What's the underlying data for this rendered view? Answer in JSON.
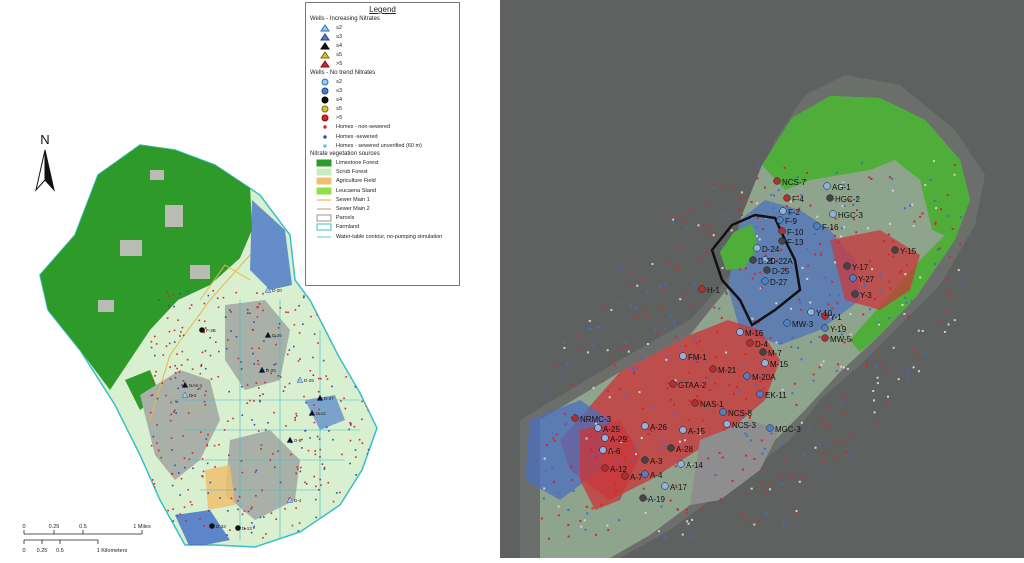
{
  "legend": {
    "title": "Legend",
    "sections": [
      {
        "name": "Wells - Increasing Nitrates",
        "items": [
          {
            "label": "≤2",
            "shape": "triangle",
            "fill": "#9cc9ee",
            "stroke": "#2d6fb2"
          },
          {
            "label": "≤3",
            "shape": "triangle",
            "fill": "#4f7fc7",
            "stroke": "#1d3f86"
          },
          {
            "label": "≤4",
            "shape": "triangle",
            "fill": "#111111",
            "stroke": "#000000"
          },
          {
            "label": "≤5",
            "shape": "triangle",
            "fill": "#d8c22e",
            "stroke": "#7a6a08"
          },
          {
            "label": ">5",
            "shape": "triangle",
            "fill": "#d8242a",
            "stroke": "#7c0f12"
          }
        ]
      },
      {
        "name": "Wells - No trend Nitrates",
        "items": [
          {
            "label": "≤2",
            "shape": "circle",
            "fill": "#9cc9ee",
            "stroke": "#2d6fb2"
          },
          {
            "label": "≤3",
            "shape": "circle",
            "fill": "#4f7fc7",
            "stroke": "#1d3f86"
          },
          {
            "label": "≤4",
            "shape": "circle",
            "fill": "#111111",
            "stroke": "#000000"
          },
          {
            "label": "≤5",
            "shape": "circle",
            "fill": "#d8c22e",
            "stroke": "#7a6a08"
          },
          {
            "label": ">5",
            "shape": "circle",
            "fill": "#d8242a",
            "stroke": "#7c0f12"
          }
        ]
      },
      {
        "name": "",
        "items": [
          {
            "label": "Homes - non-sewered",
            "shape": "dot",
            "fill": "#d8242a",
            "stroke": "#d8242a"
          },
          {
            "label": "Homes -sewered",
            "shape": "dot",
            "fill": "#2a4fb0",
            "stroke": "#2a4fb0"
          },
          {
            "label": "Homes - sewered unverified (60 m)",
            "shape": "dot",
            "fill": "#5ec0e8",
            "stroke": "#5ec0e8"
          }
        ]
      },
      {
        "name": "Nitrate vegetation sources",
        "items": [
          {
            "label": "Limestone Forest",
            "shape": "box",
            "fill": "#2e9a2a",
            "stroke": "#2e9a2a"
          },
          {
            "label": "Scrub Forest",
            "shape": "box",
            "fill": "#c8ecc0",
            "stroke": "#c8ecc0"
          },
          {
            "label": "Agriculture Field",
            "shape": "box",
            "fill": "#f0c070",
            "stroke": "#f0c070"
          },
          {
            "label": "Leucaena Stand",
            "shape": "box",
            "fill": "#8ee04a",
            "stroke": "#8ee04a"
          },
          {
            "label": "Sewer Main 1",
            "shape": "line",
            "fill": "none",
            "stroke": "#e8b84a"
          },
          {
            "label": "Sewer Main 2",
            "shape": "line",
            "fill": "none",
            "stroke": "#c8b27a"
          },
          {
            "label": "Parcels",
            "shape": "outline",
            "fill": "#ffffff",
            "stroke": "#9a9a9a"
          },
          {
            "label": "Farmland",
            "shape": "outline",
            "fill": "#ffffff",
            "stroke": "#38c0c8"
          },
          {
            "label": "Water-table contour, no-pumping simulation",
            "shape": "line",
            "fill": "none",
            "stroke": "#7ad4d8"
          }
        ]
      }
    ]
  },
  "north_label": "N",
  "scale": {
    "miles_ticks": [
      "0",
      "0.25",
      "0.5",
      "1 Miles"
    ],
    "km_ticks": [
      "0",
      "0.25",
      "0.5",
      "1 Kilometers"
    ]
  },
  "left_well_labels": [
    "F-3B",
    "D-26",
    "D-25",
    "D-29",
    "D-12",
    "D-27",
    "D-20",
    "D-8",
    "NAS-1",
    "D-4",
    "D-33",
    "D-13",
    "D-3"
  ],
  "right_well_labels": [
    "NCS-7",
    "AG-1",
    "F-4",
    "HGC-2",
    "F-2",
    "HGC-3",
    "F-9",
    "F-10",
    "F-16",
    "F-13",
    "D-24",
    "D-22A",
    "Y-15",
    "D-25",
    "D-27",
    "Y-17",
    "Y-27",
    "H-1",
    "Y-3",
    "Y-1",
    "Y-10",
    "MW-3",
    "Y-19",
    "M-16",
    "D-4",
    "MW-5",
    "M-7",
    "FM-1",
    "M-15",
    "M-21",
    "M-20A",
    "GTAA-2",
    "EK-11",
    "NAS-1",
    "NCS-8",
    "NRMC-3",
    "NCS-3",
    "MGC-3",
    "A-25",
    "A-26",
    "A-15",
    "A-29",
    "A-6",
    "A-28",
    "A-3",
    "A-14",
    "A-12",
    "A-7",
    "A-4",
    "A-17",
    "A-19",
    "D-20"
  ],
  "colors": {
    "limestone_forest": "#2e9a2a",
    "scrub_forest": "#c8ecc0",
    "urban_gray": "#9c9c9c",
    "sea_gray": "#5f6160",
    "boundary": "#38c0c8",
    "non_sewered": "#d8242a",
    "sewered": "#2a4fb0"
  }
}
